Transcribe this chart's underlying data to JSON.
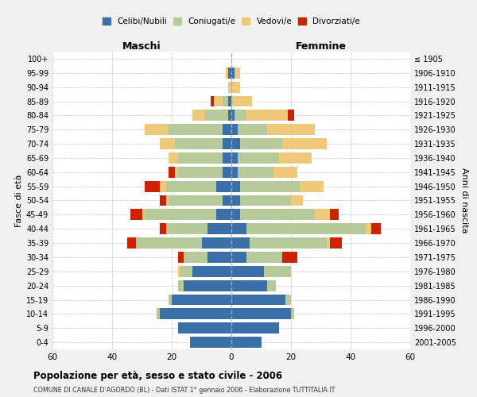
{
  "age_groups": [
    "0-4",
    "5-9",
    "10-14",
    "15-19",
    "20-24",
    "25-29",
    "30-34",
    "35-39",
    "40-44",
    "45-49",
    "50-54",
    "55-59",
    "60-64",
    "65-69",
    "70-74",
    "75-79",
    "80-84",
    "85-89",
    "90-94",
    "95-99",
    "100+"
  ],
  "anni_nascita": [
    "2001-2005",
    "1996-2000",
    "1991-1995",
    "1986-1990",
    "1981-1985",
    "1976-1980",
    "1971-1975",
    "1966-1970",
    "1961-1965",
    "1956-1960",
    "1951-1955",
    "1946-1950",
    "1941-1945",
    "1936-1940",
    "1931-1935",
    "1926-1930",
    "1921-1925",
    "1916-1920",
    "1911-1915",
    "1906-1910",
    "≤ 1905"
  ],
  "maschi": {
    "celibi": [
      14,
      18,
      24,
      20,
      16,
      13,
      8,
      10,
      8,
      5,
      3,
      5,
      3,
      3,
      3,
      3,
      1,
      1,
      0,
      1,
      0
    ],
    "coniugati": [
      0,
      0,
      1,
      1,
      2,
      4,
      8,
      22,
      14,
      24,
      18,
      17,
      15,
      15,
      16,
      18,
      8,
      2,
      0,
      0,
      0
    ],
    "vedovi": [
      0,
      0,
      0,
      0,
      0,
      1,
      0,
      0,
      0,
      1,
      1,
      2,
      1,
      3,
      5,
      8,
      4,
      3,
      1,
      1,
      0
    ],
    "divorziati": [
      0,
      0,
      0,
      0,
      0,
      0,
      2,
      3,
      2,
      4,
      2,
      5,
      2,
      0,
      0,
      0,
      0,
      1,
      0,
      0,
      0
    ]
  },
  "femmine": {
    "nubili": [
      10,
      16,
      20,
      18,
      12,
      11,
      5,
      6,
      5,
      3,
      3,
      3,
      2,
      2,
      3,
      2,
      1,
      0,
      0,
      1,
      0
    ],
    "coniugate": [
      0,
      0,
      1,
      2,
      3,
      9,
      12,
      26,
      40,
      25,
      17,
      20,
      12,
      14,
      14,
      10,
      4,
      0,
      0,
      0,
      0
    ],
    "vedove": [
      0,
      0,
      0,
      0,
      0,
      0,
      0,
      1,
      2,
      5,
      4,
      8,
      8,
      11,
      15,
      16,
      14,
      7,
      3,
      2,
      0
    ],
    "divorziate": [
      0,
      0,
      0,
      0,
      0,
      0,
      5,
      4,
      3,
      3,
      0,
      0,
      0,
      0,
      0,
      0,
      2,
      0,
      0,
      0,
      0
    ]
  },
  "colors": {
    "celibi": "#3a6fa8",
    "coniugati": "#b5c99a",
    "vedovi": "#f0c87a",
    "divorziati": "#cc2200"
  },
  "xlim": 60,
  "title": "Popolazione per età, sesso e stato civile - 2006",
  "subtitle": "COMUNE DI CANALE D'AGORDO (BL) - Dati ISTAT 1° gennaio 2006 - Elaborazione TUTTITALIA.IT",
  "ylabel_left": "Fasce di età",
  "ylabel_right": "Anni di nascita",
  "xlabel_maschi": "Maschi",
  "xlabel_femmine": "Femmine",
  "legend_labels": [
    "Celibi/Nubili",
    "Coniugati/e",
    "Vedovi/e",
    "Divorziati/e"
  ],
  "background_color": "#f0f0f0",
  "plot_bg": "#ffffff"
}
